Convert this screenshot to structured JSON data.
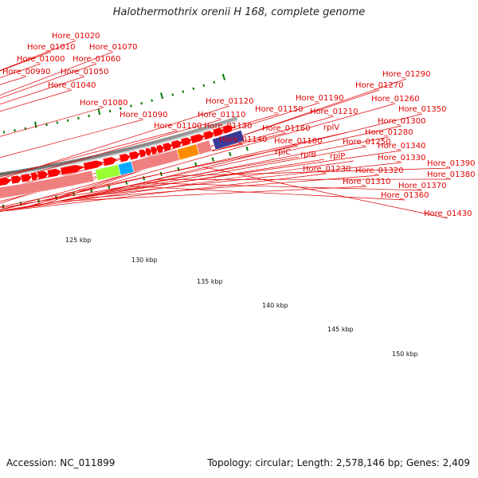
{
  "title": "Halothermothrix orenii H 168, complete genome",
  "footer": {
    "accession": "Accession: NC_011899",
    "topology": "Topology: circular; Length: 2,578,146 bp; Genes: 2,409"
  },
  "ruler_labels": [
    "125 kbp",
    "130 kbp",
    "135 kbp",
    "140 kbp",
    "145 kbp",
    "150 kbp"
  ],
  "gene_labels": [
    "Hore_00990",
    "Hore_01000",
    "Hore_01010",
    "Hore_01020",
    "Hore_01040",
    "Hore_01050",
    "Hore_01060",
    "Hore_01070",
    "Hore_01080",
    "Hore_01090",
    "Hore_01100",
    "Hore_01110",
    "Hore_01120",
    "Hore_01130",
    "Hore_01140",
    "Hore_01150",
    "Hore_01160",
    "rplC",
    "Hore_01180",
    "Hore_01190",
    "rplB",
    "rplV",
    "Hore_01210",
    "Hore_01230",
    "rplP",
    "Hore_01250",
    "Hore_01260",
    "Hore_01270",
    "Hore_01280",
    "Hore_01290",
    "Hore_01300",
    "Hore_01310",
    "Hore_01320",
    "Hore_01330",
    "Hore_01340",
    "Hore_01350",
    "Hore_01360",
    "Hore_01370",
    "Hore_01380",
    "Hore_01390",
    "Hore_01430"
  ],
  "colors": {
    "label": "#e00000",
    "orange": "#ff8c00",
    "pink": "#f08080",
    "lightgreen": "#99ff33",
    "cyan": "#00aaff",
    "navy": "#3a3a99",
    "red_arrow": "#ff0000",
    "tick": "#007a00",
    "backbone": "#888888"
  }
}
